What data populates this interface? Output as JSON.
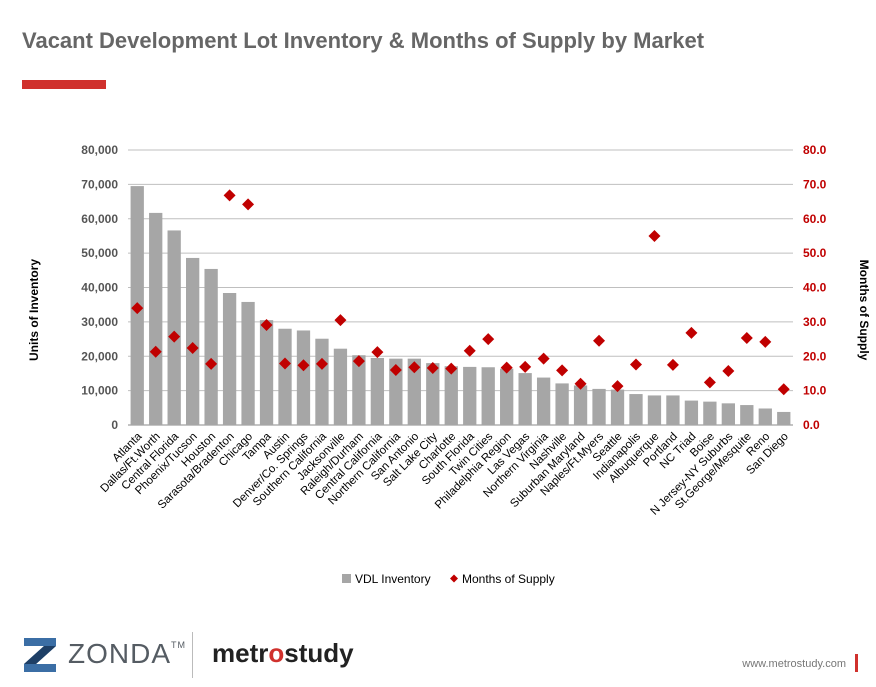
{
  "title": "Vacant Development Lot Inventory & Months of Supply by Market",
  "chart_data": {
    "type": "bar",
    "categories": [
      "Atlanta",
      "Dallas/Ft.Worth",
      "Central Florida",
      "Phoenix/Tucson",
      "Houston",
      "Sarasota/Bradenton",
      "Chicago",
      "Tampa",
      "Austin",
      "Denver/Co. Springs",
      "Southern California",
      "Jacksonville",
      "Raleigh/Durham",
      "Central California",
      "Northern California",
      "San Antonio",
      "Salt Lake City",
      "Charlotte",
      "South Florida",
      "Twin Cities",
      "Philadelphia Region",
      "Las Vegas",
      "Northern Virginia",
      "Nashville",
      "Suburban Maryland",
      "Naples/Ft.Myers",
      "Seattle",
      "Indianapolis",
      "Albuquerque",
      "Portland",
      "NC Triad",
      "Boise",
      "N Jersey-NY Suburbs",
      "St.George/Mesquite",
      "Reno",
      "San Diego"
    ],
    "series": [
      {
        "name": "VDL Inventory",
        "type": "bar",
        "axis": "left",
        "color": "#a6a6a6",
        "values": [
          69500,
          61700,
          56600,
          48600,
          45400,
          38400,
          35800,
          30500,
          28000,
          27500,
          25100,
          22200,
          20300,
          19500,
          19300,
          19300,
          18000,
          17100,
          16900,
          16800,
          16400,
          15100,
          13800,
          12100,
          11500,
          10500,
          10300,
          9000,
          8600,
          8600,
          7100,
          6800,
          6300,
          5800,
          4800,
          3800
        ]
      },
      {
        "name": "Months of Supply",
        "type": "scatter",
        "axis": "right",
        "color": "#c00000",
        "marker": "diamond",
        "values": [
          34.0,
          21.3,
          25.7,
          22.4,
          17.8,
          66.8,
          64.2,
          29.1,
          17.9,
          17.4,
          17.8,
          30.5,
          18.6,
          21.2,
          16.0,
          16.8,
          16.6,
          16.4,
          21.6,
          25.0,
          16.7,
          16.9,
          19.3,
          15.9,
          12.0,
          24.5,
          11.3,
          17.6,
          55.0,
          17.5,
          26.8,
          12.4,
          15.7,
          25.3,
          24.2,
          10.4
        ]
      }
    ],
    "y_left": {
      "label": "Units of Inventory",
      "min": 0,
      "max": 80000,
      "ticks": [
        "0",
        "10,000",
        "20,000",
        "30,000",
        "40,000",
        "50,000",
        "60,000",
        "70,000",
        "80,000"
      ]
    },
    "y_right": {
      "label": "Months of Supply",
      "min": 0,
      "max": 80,
      "ticks": [
        "0.0",
        "10.0",
        "20.0",
        "30.0",
        "40.0",
        "50.0",
        "60.0",
        "70.0",
        "80.0"
      ]
    },
    "grid": true,
    "legend_position": "bottom"
  },
  "footer": {
    "zonda_brand": "ZONDA",
    "zonda_tm": "TM",
    "metro_before": "metr",
    "metro_accent": "o",
    "metro_after": "study",
    "url": "www.metrostudy.com"
  }
}
